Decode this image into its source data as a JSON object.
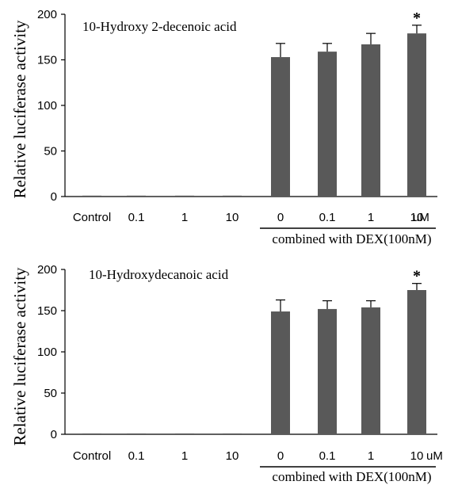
{
  "colors": {
    "bar": "#595959",
    "axis": "#000000",
    "error": "#000000"
  },
  "chart_data": [
    {
      "type": "bar",
      "title": "10-Hydroxy 2-decenoic acid",
      "ylabel": "Relative luciferase activity",
      "xlabel": "",
      "unit_label": "uM",
      "group_label": "combined with DEX(100nM)",
      "ylim": [
        0,
        200
      ],
      "yticks": [
        "0",
        "50",
        "100",
        "150",
        "200"
      ],
      "grid": false,
      "categories": [
        "Control",
        "0.1",
        "1",
        "10",
        "0",
        "0.1",
        "1",
        "10"
      ],
      "values": [
        1,
        1,
        1,
        1,
        153,
        159,
        167,
        179
      ],
      "errors": [
        0,
        0,
        0,
        0,
        15,
        9,
        12,
        9
      ],
      "significance": [
        "",
        "",
        "",
        "",
        "",
        "",
        "",
        "*"
      ]
    },
    {
      "type": "bar",
      "title": "10-Hydroxydecanoic acid",
      "ylabel": "Relative luciferase activity",
      "xlabel": "",
      "unit_label": "uM",
      "group_label": "combined with DEX(100nM)",
      "ylim": [
        0,
        200
      ],
      "yticks": [
        "0",
        "50",
        "100",
        "150",
        "200"
      ],
      "grid": false,
      "categories": [
        "Control",
        "0.1",
        "1",
        "10",
        "0",
        "0.1",
        "1",
        "10"
      ],
      "values": [
        1,
        1,
        1,
        1,
        149,
        152,
        154,
        175
      ],
      "errors": [
        0,
        0,
        0,
        0,
        14,
        10,
        8,
        8
      ],
      "significance": [
        "",
        "",
        "",
        "",
        "",
        "",
        "",
        "*"
      ]
    }
  ]
}
